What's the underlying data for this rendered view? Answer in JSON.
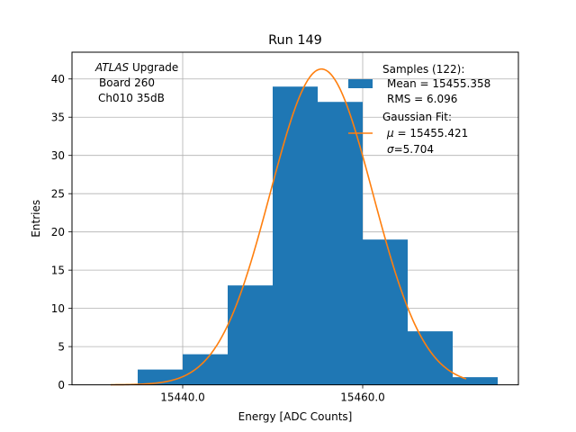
{
  "chart_data": {
    "type": "bar",
    "title": "Run 149",
    "xlabel": "Energy [ADC Counts]",
    "ylabel": "Entries",
    "xlim": [
      1542.8,
      15477.4
    ],
    "ylim": [
      0,
      43.5
    ],
    "grid": true,
    "x_ticks": [
      15440.0,
      15460.0
    ],
    "x_tick_labels": [
      "15440.0",
      "15460.0"
    ],
    "y_ticks": [
      0,
      5,
      10,
      15,
      20,
      25,
      30,
      35,
      40
    ],
    "y_tick_labels": [
      "0",
      "5",
      "10",
      "15",
      "20",
      "25",
      "30",
      "35",
      "40"
    ],
    "bin_edges": [
      15435,
      15440,
      15445,
      15450,
      15455,
      15460,
      15465,
      15470,
      15475
    ],
    "counts": [
      2,
      4,
      13,
      39,
      37,
      19,
      7,
      1
    ],
    "bar_color": "#1f77b4",
    "fit": {
      "name": "Gaussian Fit",
      "mu": 15455.421,
      "sigma": 5.704,
      "amplitude": 41.3,
      "x_range": [
        15432,
        15471.5
      ],
      "color": "#ff7f0e"
    },
    "annotation": {
      "italic": "ATLAS",
      "line1_rest": " Upgrade",
      "line2": "Board 260",
      "line3": "Ch010 35dB"
    },
    "legend": {
      "placement": "top-right",
      "samples_title": "Samples (122):",
      "samples_mean": "Mean = 15455.358",
      "samples_rms": "RMS = 6.096",
      "fit_title": "Gaussian Fit:",
      "fit_mu_symbol": "μ",
      "fit_mu_value": " = 15455.421",
      "fit_sigma_symbol": "σ",
      "fit_sigma_value": "=5.704"
    }
  }
}
